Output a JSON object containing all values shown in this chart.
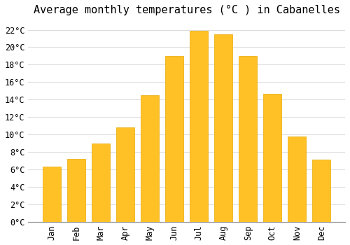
{
  "title": "Average monthly temperatures (°C ) in Cabanelles",
  "months": [
    "Jan",
    "Feb",
    "Mar",
    "Apr",
    "May",
    "Jun",
    "Jul",
    "Aug",
    "Sep",
    "Oct",
    "Nov",
    "Dec"
  ],
  "values": [
    6.3,
    7.2,
    9.0,
    10.8,
    14.5,
    19.0,
    21.9,
    21.5,
    19.0,
    14.7,
    9.8,
    7.1
  ],
  "bar_color_main": "#FFC125",
  "bar_color_edge": "#E8A800",
  "background_color": "#FFFFFF",
  "plot_bg_color": "#FFFFFF",
  "grid_color": "#DDDDDD",
  "ylim": [
    0,
    23
  ],
  "ytick_step": 2,
  "title_fontsize": 11,
  "tick_fontsize": 8.5,
  "font_family": "monospace"
}
